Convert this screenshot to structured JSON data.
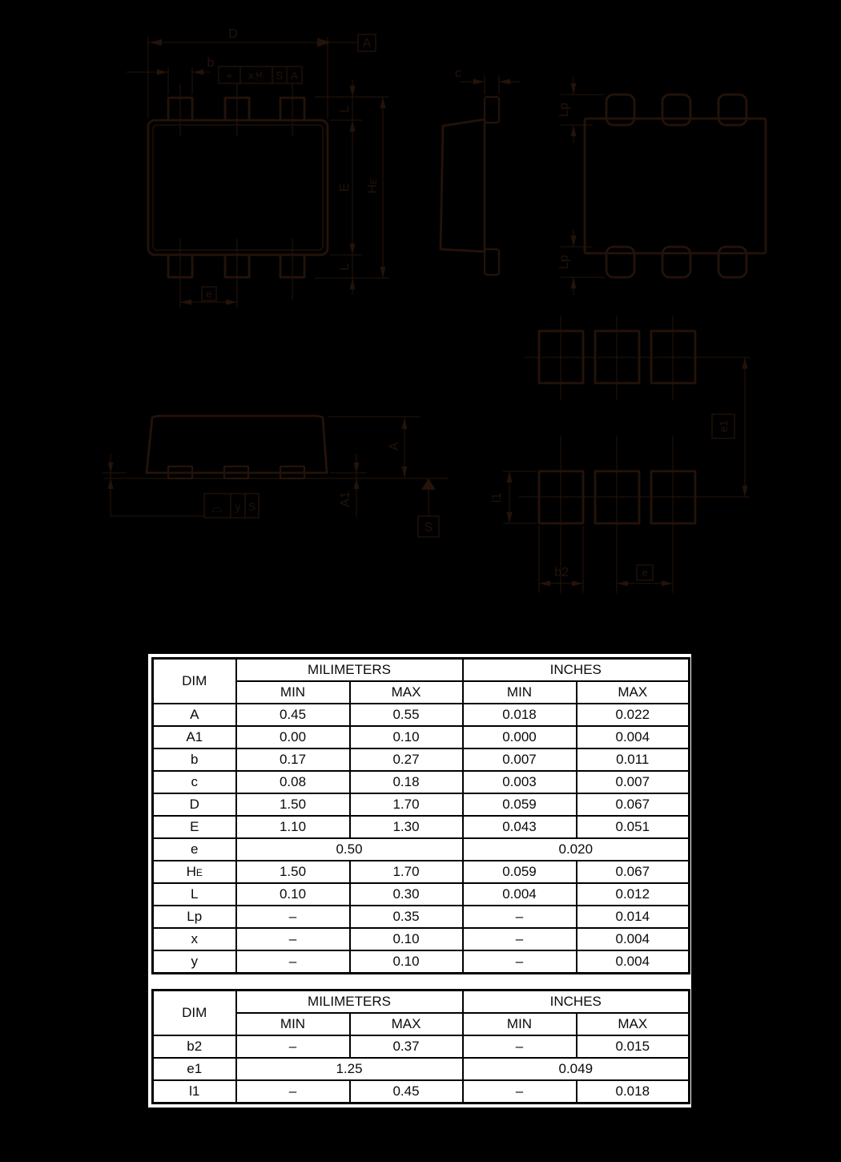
{
  "page": {
    "background_color": "#000000",
    "drawing_line_color": "#241309",
    "table_background": "#ffffff",
    "table_line_color": "#000000"
  },
  "drawing": {
    "top_view": {
      "dim_d": "D",
      "dim_b": "b",
      "datum_a": "A",
      "fcf": {
        "position_symbol": "⌖",
        "tolerance": "xⓂ",
        "datum_ref_1": "S",
        "datum_ref_2": "A"
      },
      "dim_l_top": "L",
      "dim_e_body": "E",
      "dim_he": {
        "base": "H",
        "sub": "E"
      },
      "dim_l_bottom": "L",
      "dim_e_pitch": "e"
    },
    "side_view": {
      "dim_c": "c"
    },
    "bottom_view": {
      "dim_lp_top": "Lp",
      "dim_lp_bottom": "Lp"
    },
    "front_view": {
      "dim_a": "A",
      "dim_a1": "A1",
      "fcf": {
        "profile_symbol": "⌓",
        "tolerance": "y",
        "datum_ref": "S"
      },
      "datum_s": "S"
    },
    "land_pattern": {
      "dim_e1": "e1",
      "dim_l1": "l1",
      "dim_b2": "b2",
      "dim_e": "e"
    }
  },
  "tables": [
    {
      "name": "package-dimensions",
      "header": {
        "dim": "DIM",
        "mm": "MILIMETERS",
        "inches": "INCHES",
        "min": "MIN",
        "max": "MAX"
      },
      "rows": [
        {
          "dim": "A",
          "mm_min": "0.45",
          "mm_max": "0.55",
          "in_min": "0.018",
          "in_max": "0.022"
        },
        {
          "dim": "A1",
          "mm_min": "0.00",
          "mm_max": "0.10",
          "in_min": "0.000",
          "in_max": "0.004"
        },
        {
          "dim": "b",
          "mm_min": "0.17",
          "mm_max": "0.27",
          "in_min": "0.007",
          "in_max": "0.011"
        },
        {
          "dim": "c",
          "mm_min": "0.08",
          "mm_max": "0.18",
          "in_min": "0.003",
          "in_max": "0.007"
        },
        {
          "dim": "D",
          "mm_min": "1.50",
          "mm_max": "1.70",
          "in_min": "0.059",
          "in_max": "0.067"
        },
        {
          "dim": "E",
          "mm_min": "1.10",
          "mm_max": "1.30",
          "in_min": "0.043",
          "in_max": "0.051"
        },
        {
          "dim": "e",
          "mm_span": "0.50",
          "in_span": "0.020"
        },
        {
          "dim": "H",
          "dim_sub": "E",
          "mm_min": "1.50",
          "mm_max": "1.70",
          "in_min": "0.059",
          "in_max": "0.067"
        },
        {
          "dim": "L",
          "mm_min": "0.10",
          "mm_max": "0.30",
          "in_min": "0.004",
          "in_max": "0.012"
        },
        {
          "dim": "Lp",
          "mm_min": "–",
          "mm_max": "0.35",
          "in_min": "–",
          "in_max": "0.014"
        },
        {
          "dim": "x",
          "mm_min": "–",
          "mm_max": "0.10",
          "in_min": "–",
          "in_max": "0.004"
        },
        {
          "dim": "y",
          "mm_min": "–",
          "mm_max": "0.10",
          "in_min": "–",
          "in_max": "0.004"
        }
      ]
    },
    {
      "name": "land-pattern-dimensions",
      "header": {
        "dim": "DIM",
        "mm": "MILIMETERS",
        "inches": "INCHES",
        "min": "MIN",
        "max": "MAX"
      },
      "rows": [
        {
          "dim": "b2",
          "mm_min": "–",
          "mm_max": "0.37",
          "in_min": "–",
          "in_max": "0.015"
        },
        {
          "dim": "e1",
          "mm_span": "1.25",
          "in_span": "0.049"
        },
        {
          "dim": "l1",
          "mm_min": "–",
          "mm_max": "0.45",
          "in_min": "–",
          "in_max": "0.018"
        }
      ]
    }
  ]
}
